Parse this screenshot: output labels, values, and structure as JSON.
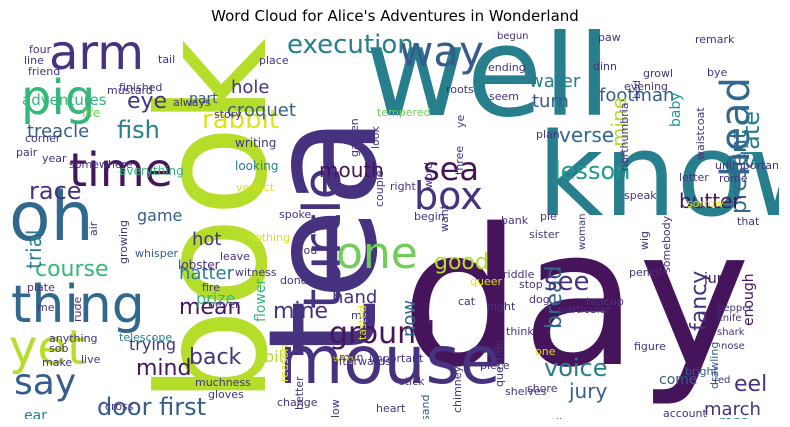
{
  "title": "Word Cloud for Alice's Adventures in Wonderland",
  "colors": {
    "purple": "#45145b",
    "indigo": "#46327e",
    "blue": "#365c8d",
    "slate": "#31688e",
    "teal": "#277f8e",
    "cyan": "#1f9a8a",
    "green": "#35b779",
    "lime": "#6ece58",
    "yellow": "#b5de2b",
    "gold": "#dce319"
  },
  "words": [
    {
      "text": "day",
      "color": "#45145b"
    },
    {
      "text": "well",
      "color": "#277f8e"
    },
    {
      "text": "tea",
      "color": "#46327e"
    },
    {
      "text": "book",
      "color": "#b5de2b"
    },
    {
      "text": "know",
      "color": "#277f8e"
    },
    {
      "text": "mouse",
      "color": "#46327e"
    },
    {
      "text": "oh",
      "color": "#31688e"
    },
    {
      "text": "thing",
      "color": "#31688e"
    },
    {
      "text": "time",
      "color": "#45145b"
    },
    {
      "text": "turtle",
      "color": "#46327e"
    },
    {
      "text": "pig",
      "color": "#35b779"
    },
    {
      "text": "arm",
      "color": "#46327e"
    },
    {
      "text": "way",
      "color": "#365c8d"
    },
    {
      "text": "head",
      "color": "#31688e"
    },
    {
      "text": "yet",
      "color": "#b5de2b"
    },
    {
      "text": "say",
      "color": "#365c8d"
    },
    {
      "text": "box",
      "color": "#46327e"
    },
    {
      "text": "one",
      "color": "#6ece58"
    },
    {
      "text": "execution",
      "color": "#277f8e"
    },
    {
      "text": "sea",
      "color": "#45145b"
    },
    {
      "text": "ground",
      "color": "#45145b"
    },
    {
      "text": "rabbit",
      "color": "#dce319"
    },
    {
      "text": "fish",
      "color": "#277f8e"
    },
    {
      "text": "lesson",
      "color": "#1f9a8a"
    },
    {
      "text": "verse",
      "color": "#31688e"
    },
    {
      "text": "slate",
      "color": "#277f8e"
    },
    {
      "text": "present",
      "color": "#31688e"
    },
    {
      "text": "door first",
      "color": "#365c8d"
    },
    {
      "text": "voice",
      "color": "#277f8e"
    },
    {
      "text": "course",
      "color": "#35b779"
    },
    {
      "text": "race",
      "color": "#46327e"
    },
    {
      "text": "mean",
      "color": "#45145b"
    },
    {
      "text": "back",
      "color": "#46327e"
    },
    {
      "text": "mind",
      "color": "#45145b"
    },
    {
      "text": "bread",
      "color": "#31688e"
    },
    {
      "text": "see",
      "color": "#46327e"
    },
    {
      "text": "fancy",
      "color": "#46327e"
    },
    {
      "text": "jury",
      "color": "#365c8d"
    },
    {
      "text": "march",
      "color": "#46327e"
    },
    {
      "text": "eel",
      "color": "#46327e"
    },
    {
      "text": "butter",
      "color": "#45145b"
    },
    {
      "text": "mouth",
      "color": "#45145b"
    },
    {
      "text": "eye",
      "color": "#46327e"
    },
    {
      "text": "water",
      "color": "#277f8e"
    },
    {
      "text": "turn",
      "color": "#365c8d"
    },
    {
      "text": "footman",
      "color": "#365c8d"
    },
    {
      "text": "hole",
      "color": "#46327e"
    },
    {
      "text": "croquet",
      "color": "#365c8d"
    },
    {
      "text": "treacle",
      "color": "#365c8d"
    },
    {
      "text": "good",
      "color": "#b5de2b"
    },
    {
      "text": "hand",
      "color": "#46327e"
    },
    {
      "text": "trial",
      "color": "#277f8e"
    },
    {
      "text": "hatter",
      "color": "#277f8e"
    },
    {
      "text": "hot",
      "color": "#46327e"
    },
    {
      "text": "game",
      "color": "#365c8d"
    },
    {
      "text": "prize",
      "color": "#35b779"
    },
    {
      "text": "trying",
      "color": "#46327e"
    },
    {
      "text": "come",
      "color": "#365c8d"
    },
    {
      "text": "juror",
      "color": "#45145b"
    },
    {
      "text": "enough",
      "color": "#45145b"
    },
    {
      "text": "rose",
      "color": "#277f8e"
    },
    {
      "text": "ear",
      "color": "#277f8e"
    },
    {
      "text": "mine",
      "color": "#b5de2b"
    },
    {
      "text": "baby",
      "color": "#1f9a8a"
    },
    {
      "text": "part",
      "color": "#365c8d"
    },
    {
      "text": "adventures",
      "color": "#35b779"
    },
    {
      "text": "bill",
      "color": "#b5de2b"
    },
    {
      "text": "flower",
      "color": "#35b779"
    },
    {
      "text": "now",
      "color": "#31688e"
    },
    {
      "text": "life",
      "color": "#6ece58"
    },
    {
      "text": "writing",
      "color": "#46327e"
    },
    {
      "text": "looking",
      "color": "#277f8e"
    },
    {
      "text": "everything",
      "color": "#35b779"
    },
    {
      "text": "lobster",
      "color": "#46327e"
    },
    {
      "text": "whisper",
      "color": "#365c8d"
    },
    {
      "text": "never",
      "color": "#46327e"
    },
    {
      "text": "telescope",
      "color": "#277f8e"
    },
    {
      "text": "muchness",
      "color": "#46327e"
    },
    {
      "text": "gloves",
      "color": "#46327e"
    },
    {
      "text": "cross",
      "color": "#46327e"
    },
    {
      "text": "tree",
      "color": "#35b779"
    },
    {
      "text": "somersault",
      "color": "#46327e"
    },
    {
      "text": "fact",
      "color": "#46327e"
    },
    {
      "text": "heart",
      "color": "#46327e"
    },
    {
      "text": "low",
      "color": "#46327e"
    },
    {
      "text": "sand",
      "color": "#365c8d"
    },
    {
      "text": "chimney",
      "color": "#46327e"
    },
    {
      "text": "question",
      "color": "#46327e"
    },
    {
      "text": "elbow",
      "color": "#46327e"
    },
    {
      "text": "shore",
      "color": "#46327e"
    },
    {
      "text": "fit",
      "color": "#35b779"
    },
    {
      "text": "here",
      "color": "#dce319"
    },
    {
      "text": "account",
      "color": "#46327e"
    },
    {
      "text": "drawling",
      "color": "#365c8d"
    },
    {
      "text": "bright",
      "color": "#365c8d"
    },
    {
      "text": "red",
      "color": "#46327e"
    },
    {
      "text": "nose",
      "color": "#46327e"
    },
    {
      "text": "shark",
      "color": "#46327e"
    },
    {
      "text": "knife",
      "color": "#46327e"
    },
    {
      "text": "pepper",
      "color": "#46327e"
    },
    {
      "text": "pencil",
      "color": "#46327e"
    },
    {
      "text": "figure",
      "color": "#46327e"
    },
    {
      "text": "face",
      "color": "#46327e"
    },
    {
      "text": "night",
      "color": "#46327e"
    },
    {
      "text": "think",
      "color": "#46327e"
    },
    {
      "text": "piece",
      "color": "#46327e"
    },
    {
      "text": "teacup",
      "color": "#46327e"
    },
    {
      "text": "stop",
      "color": "#46327e"
    },
    {
      "text": "dog",
      "color": "#46327e"
    },
    {
      "text": "cat",
      "color": "#46327e"
    },
    {
      "text": "queer",
      "color": "#dce319"
    },
    {
      "text": "riddle",
      "color": "#46327e"
    },
    {
      "text": "sister",
      "color": "#46327e"
    },
    {
      "text": "bank",
      "color": "#46327e"
    },
    {
      "text": "begin",
      "color": "#46327e"
    },
    {
      "text": "right",
      "color": "#46327e"
    },
    {
      "text": "word",
      "color": "#46327e"
    },
    {
      "text": "couple",
      "color": "#46327e"
    },
    {
      "text": "want",
      "color": "#46327e"
    },
    {
      "text": "tempered",
      "color": "#6ece58"
    },
    {
      "text": "plan",
      "color": "#46327e"
    },
    {
      "text": "roots",
      "color": "#46327e"
    },
    {
      "text": "seem",
      "color": "#46327e"
    },
    {
      "text": "look",
      "color": "#46327e"
    },
    {
      "text": "garden",
      "color": "#46327e"
    },
    {
      "text": "verdict",
      "color": "#dce319"
    },
    {
      "text": "spoke",
      "color": "#46327e"
    },
    {
      "text": "nothing",
      "color": "#dce319"
    },
    {
      "text": "you",
      "color": "#46327e"
    },
    {
      "text": "witness",
      "color": "#46327e"
    },
    {
      "text": "leave",
      "color": "#46327e"
    },
    {
      "text": "done",
      "color": "#46327e"
    },
    {
      "text": "fire",
      "color": "#46327e"
    },
    {
      "text": "growing",
      "color": "#46327e"
    },
    {
      "text": "rude",
      "color": "#46327e"
    },
    {
      "text": "live",
      "color": "#46327e"
    },
    {
      "text": "sob",
      "color": "#46327e"
    },
    {
      "text": "anything",
      "color": "#46327e"
    },
    {
      "text": "make",
      "color": "#46327e"
    },
    {
      "text": "me",
      "color": "#46327e"
    },
    {
      "text": "plate",
      "color": "#46327e"
    },
    {
      "text": "air",
      "color": "#46327e"
    },
    {
      "text": "somewhere",
      "color": "#46327e"
    },
    {
      "text": "year",
      "color": "#46327e"
    },
    {
      "text": "pair",
      "color": "#46327e"
    },
    {
      "text": "corner",
      "color": "#46327e"
    },
    {
      "text": "mustard",
      "color": "#46327e"
    },
    {
      "text": "finished",
      "color": "#46327e"
    },
    {
      "text": "always",
      "color": "#46327e"
    },
    {
      "text": "tail",
      "color": "#46327e"
    },
    {
      "text": "story",
      "color": "#46327e"
    },
    {
      "text": "place",
      "color": "#46327e"
    },
    {
      "text": "four",
      "color": "#46327e"
    },
    {
      "text": "line",
      "color": "#46327e"
    },
    {
      "text": "friend",
      "color": "#46327e"
    },
    {
      "text": "begun",
      "color": "#46327e"
    },
    {
      "text": "ending",
      "color": "#46327e"
    },
    {
      "text": "dinn",
      "color": "#46327e"
    },
    {
      "text": "paw",
      "color": "#46327e"
    },
    {
      "text": "bed",
      "color": "#46327e"
    },
    {
      "text": "evening",
      "color": "#46327e"
    },
    {
      "text": "growl",
      "color": "#46327e"
    },
    {
      "text": "bye",
      "color": "#46327e"
    },
    {
      "text": "remark",
      "color": "#46327e"
    },
    {
      "text": "ye",
      "color": "#46327e"
    },
    {
      "text": "three",
      "color": "#46327e"
    },
    {
      "text": "northumbria",
      "color": "#46327e"
    },
    {
      "text": "waistcoat",
      "color": "#46327e"
    },
    {
      "text": "unimportant",
      "color": "#46327e"
    },
    {
      "text": "rome",
      "color": "#46327e"
    },
    {
      "text": "that",
      "color": "#46327e"
    },
    {
      "text": "speak",
      "color": "#46327e"
    },
    {
      "text": "sorrow",
      "color": "#dce319"
    },
    {
      "text": "letter",
      "color": "#46327e"
    },
    {
      "text": "pie",
      "color": "#46327e"
    },
    {
      "text": "woman",
      "color": "#46327e"
    },
    {
      "text": "wig",
      "color": "#46327e"
    },
    {
      "text": "somebody",
      "color": "#46327e"
    },
    {
      "text": "particular",
      "color": "#46327e"
    },
    {
      "text": "one",
      "color": "#dce319"
    },
    {
      "text": "man",
      "color": "#46327e"
    },
    {
      "text": "wag",
      "color": "#dce319"
    },
    {
      "text": "mad",
      "color": "#46327e"
    },
    {
      "text": "important",
      "color": "#46327e"
    },
    {
      "text": "tasted",
      "color": "#dce319"
    },
    {
      "text": "stick",
      "color": "#46327e"
    },
    {
      "text": "reason",
      "color": "#dce319"
    },
    {
      "text": "change",
      "color": "#46327e"
    },
    {
      "text": "better",
      "color": "#46327e"
    },
    {
      "text": "afterwards",
      "color": "#46327e"
    },
    {
      "text": "shelves",
      "color": "#46327e"
    },
    {
      "text": "mine",
      "color": "#46327e"
    },
    {
      "text": "s",
      "color": "#46327e"
    }
  ]
}
